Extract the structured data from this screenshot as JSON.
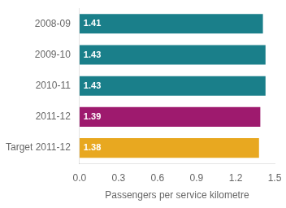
{
  "chart_data": {
    "type": "bar",
    "orientation": "horizontal",
    "categories": [
      "Target 2011-12",
      "2011-12",
      "2010-11",
      "2009-10",
      "2008-09"
    ],
    "values": [
      1.38,
      1.39,
      1.43,
      1.43,
      1.41
    ],
    "colors": [
      "#e8a820",
      "#9e1a6e",
      "#1a7f8a",
      "#1a7f8a",
      "#1a7f8a"
    ],
    "xlabel": "Passengers per service kilometre",
    "xlim": [
      0,
      1.5
    ],
    "xticks": [
      {
        "value": 0,
        "label": "0.0"
      },
      0.3,
      0.6,
      0.9,
      1.2,
      1.5
    ],
    "data_labels": true,
    "grid": false
  }
}
